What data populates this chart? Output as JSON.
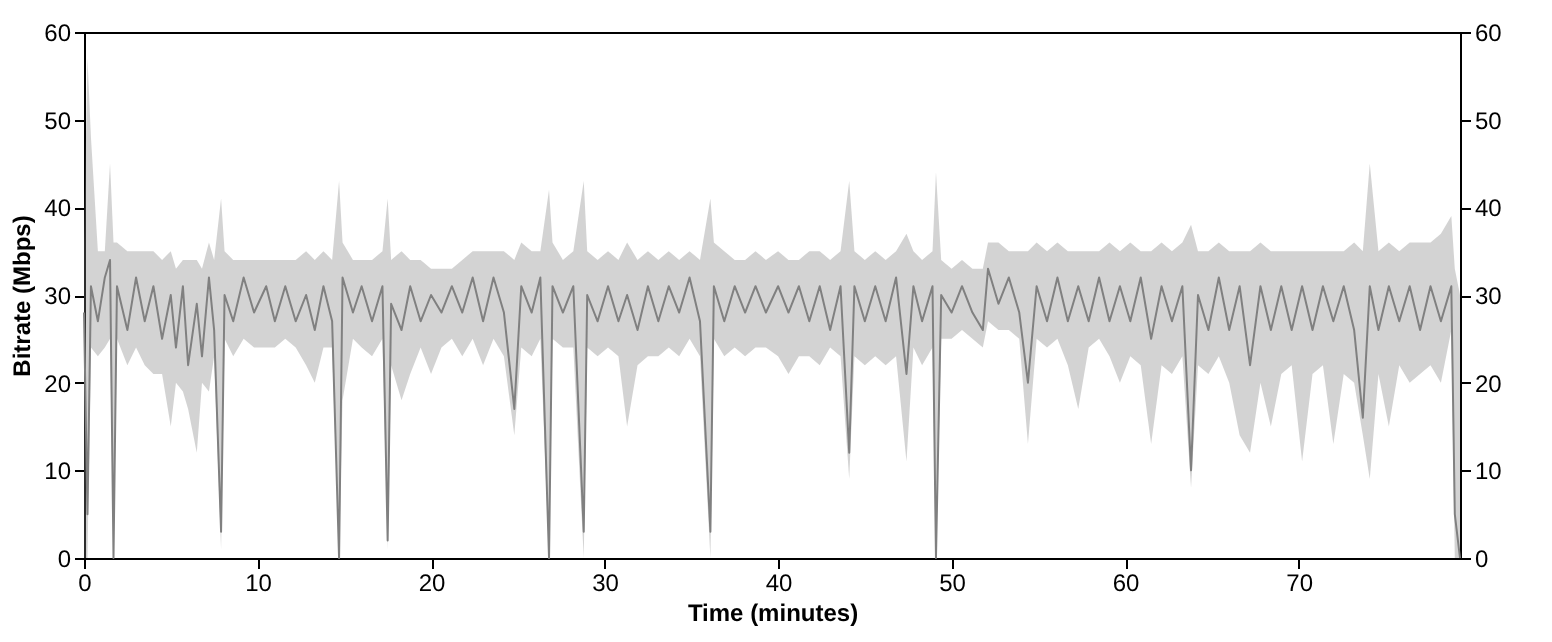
{
  "chart_data": {
    "type": "line",
    "xlabel": "Time (minutes)",
    "ylabel": "Bitrate (Mbps)",
    "xlim": [
      0,
      79.3
    ],
    "xticks": [
      0,
      10,
      20,
      30,
      40,
      50,
      60,
      70
    ],
    "ylim": [
      0,
      60
    ],
    "yticks": [
      0,
      10,
      20,
      30,
      40,
      50,
      60
    ],
    "y2lim": [
      0,
      60
    ],
    "y2ticks": [
      0,
      10,
      20,
      30,
      40,
      50,
      60
    ],
    "grid": false,
    "marker": "none",
    "line_style": "solid",
    "series": [
      {
        "color": "#808080",
        "x": [
          0,
          0.2,
          0.4,
          0.8,
          1.2,
          1.5,
          1.7,
          1.9,
          2.5,
          3.0,
          3.5,
          4.0,
          4.5,
          5.0,
          5.3,
          5.7,
          6.0,
          6.5,
          6.8,
          7.2,
          7.5,
          7.9,
          8.1,
          8.6,
          9.2,
          9.8,
          10.5,
          11.0,
          11.6,
          12.2,
          12.8,
          13.3,
          13.8,
          14.3,
          14.7,
          14.9,
          15.5,
          16.0,
          16.6,
          17.2,
          17.5,
          17.7,
          18.3,
          18.8,
          19.4,
          20.0,
          20.6,
          21.2,
          21.8,
          22.4,
          23.0,
          23.6,
          24.2,
          24.8,
          25.2,
          25.8,
          26.3,
          26.8,
          27.0,
          27.6,
          28.2,
          28.8,
          29.0,
          29.6,
          30.2,
          30.8,
          31.3,
          31.9,
          32.5,
          33.1,
          33.7,
          34.3,
          34.9,
          35.5,
          36.1,
          36.3,
          36.9,
          37.5,
          38.1,
          38.7,
          39.3,
          40.0,
          40.6,
          41.2,
          41.8,
          42.4,
          43.0,
          43.6,
          44.1,
          44.4,
          45.0,
          45.6,
          46.2,
          46.8,
          47.4,
          47.8,
          48.3,
          48.9,
          49.1,
          49.4,
          50.0,
          50.6,
          51.2,
          51.8,
          52.1,
          52.7,
          53.3,
          53.9,
          54.4,
          54.9,
          55.5,
          56.1,
          56.7,
          57.3,
          57.9,
          58.5,
          59.1,
          59.7,
          60.3,
          60.9,
          61.5,
          62.1,
          62.7,
          63.3,
          63.8,
          64.2,
          64.8,
          65.4,
          66.0,
          66.6,
          67.2,
          67.8,
          68.4,
          69.0,
          69.6,
          70.2,
          70.8,
          71.4,
          72.0,
          72.6,
          73.2,
          73.7,
          74.1,
          74.6,
          75.2,
          75.8,
          76.4,
          77.0,
          77.6,
          78.2,
          78.8,
          79.0,
          79.3
        ],
        "values": [
          28,
          5,
          31,
          27,
          32,
          34,
          0,
          31,
          26,
          32,
          27,
          31,
          25,
          30,
          24,
          31,
          22,
          29,
          23,
          32,
          26,
          3,
          30,
          27,
          32,
          28,
          31,
          27,
          31,
          27,
          30,
          26,
          31,
          27,
          0,
          32,
          28,
          31,
          27,
          31,
          2,
          29,
          26,
          31,
          27,
          30,
          28,
          31,
          28,
          32,
          27,
          32,
          28,
          17,
          31,
          28,
          32,
          0,
          31,
          28,
          31,
          3,
          30,
          27,
          31,
          27,
          30,
          26,
          31,
          27,
          31,
          28,
          32,
          27,
          3,
          31,
          27,
          31,
          28,
          31,
          28,
          31,
          28,
          31,
          27,
          31,
          26,
          31,
          12,
          31,
          27,
          31,
          27,
          32,
          21,
          31,
          27,
          31,
          0,
          30,
          28,
          31,
          28,
          26,
          33,
          29,
          32,
          28,
          20,
          31,
          27,
          32,
          27,
          31,
          27,
          32,
          27,
          31,
          27,
          32,
          25,
          31,
          27,
          31,
          10,
          30,
          26,
          32,
          26,
          31,
          22,
          31,
          26,
          31,
          26,
          31,
          26,
          31,
          27,
          31,
          26,
          16,
          31,
          26,
          31,
          27,
          31,
          26,
          31,
          27,
          31,
          5,
          0
        ],
        "lower": [
          0,
          0,
          24,
          23,
          24,
          25,
          0,
          25,
          22,
          24,
          22,
          21,
          21,
          15,
          20,
          19,
          17,
          12,
          20,
          19,
          23,
          1,
          25,
          23,
          25,
          24,
          24,
          24,
          25,
          24,
          22,
          20,
          24,
          24,
          0,
          18,
          25,
          24,
          23,
          25,
          1,
          22,
          18,
          21,
          24,
          21,
          24,
          25,
          23,
          25,
          22,
          25,
          23,
          14,
          24,
          23,
          25,
          0,
          25,
          24,
          24,
          0,
          24,
          23,
          24,
          23,
          15,
          22,
          23,
          23,
          24,
          23,
          25,
          23,
          0,
          25,
          23,
          24,
          23,
          24,
          24,
          23,
          21,
          23,
          23,
          22,
          24,
          23,
          9,
          23,
          22,
          23,
          22,
          23,
          11,
          24,
          22,
          24,
          0,
          25,
          25,
          26,
          25,
          24,
          27,
          26,
          26,
          25,
          13,
          25,
          24,
          25,
          22,
          17,
          24,
          25,
          23,
          20,
          23,
          22,
          13,
          22,
          21,
          23,
          8,
          22,
          21,
          23,
          20,
          14,
          12,
          20,
          15,
          21,
          22,
          11,
          21,
          22,
          13,
          21,
          20,
          14,
          9,
          21,
          15,
          22,
          20,
          21,
          22,
          20,
          26,
          0,
          0
        ],
        "upper": [
          36,
          57,
          48,
          35,
          35,
          45,
          36,
          36,
          35,
          35,
          35,
          35,
          34,
          35,
          33,
          34,
          34,
          34,
          33,
          36,
          34,
          41,
          35,
          34,
          34,
          34,
          34,
          34,
          34,
          34,
          35,
          34,
          35,
          34,
          43,
          36,
          34,
          34,
          34,
          35,
          41,
          34,
          35,
          34,
          34,
          33,
          33,
          33,
          34,
          35,
          35,
          35,
          35,
          34,
          36,
          35,
          35,
          42,
          36,
          34,
          35,
          43,
          35,
          34,
          35,
          34,
          36,
          34,
          35,
          34,
          35,
          34,
          35,
          34,
          41,
          36,
          35,
          34,
          34,
          35,
          34,
          35,
          34,
          34,
          35,
          35,
          34,
          35,
          43,
          35,
          34,
          35,
          34,
          35,
          37,
          35,
          34,
          35,
          44,
          34,
          33,
          34,
          33,
          33,
          36,
          36,
          35,
          35,
          35,
          36,
          35,
          36,
          35,
          35,
          35,
          35,
          36,
          35,
          36,
          35,
          35,
          36,
          35,
          36,
          38,
          35,
          35,
          36,
          35,
          35,
          35,
          36,
          35,
          35,
          35,
          35,
          35,
          35,
          35,
          35,
          36,
          35,
          45,
          35,
          36,
          35,
          36,
          36,
          36,
          37,
          39,
          33,
          30
        ]
      }
    ]
  }
}
